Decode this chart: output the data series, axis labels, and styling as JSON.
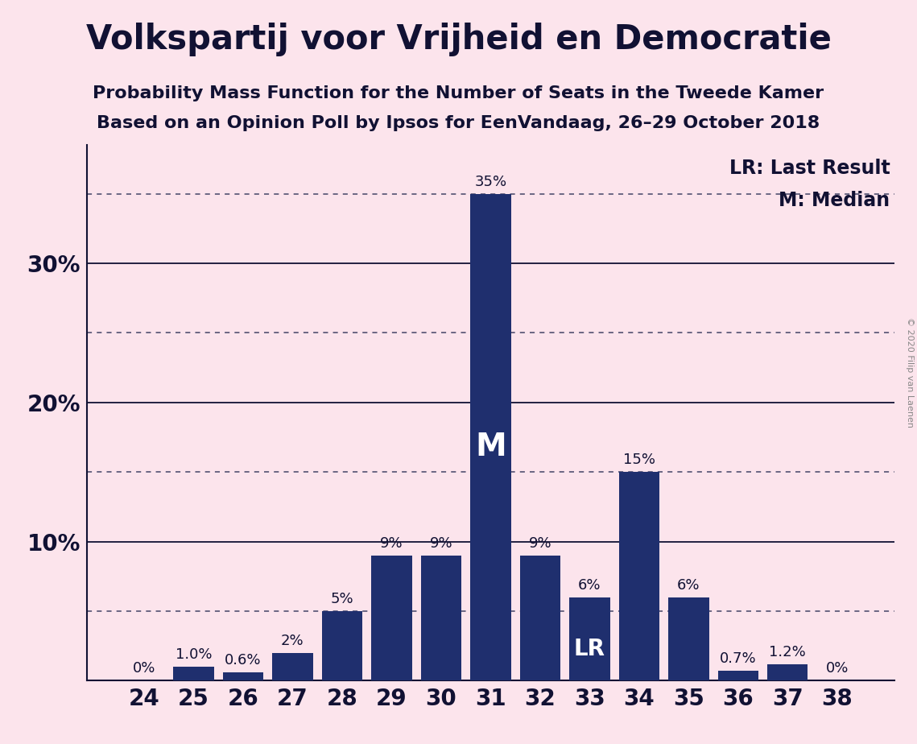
{
  "title": "Volkspartij voor Vrijheid en Democratie",
  "subtitle1": "Probability Mass Function for the Number of Seats in the Tweede Kamer",
  "subtitle2": "Based on an Opinion Poll by Ipsos for EenVandaag, 26–29 October 2018",
  "copyright": "© 2020 Filip van Laenen",
  "legend_lr": "LR: Last Result",
  "legend_m": "M: Median",
  "seats": [
    24,
    25,
    26,
    27,
    28,
    29,
    30,
    31,
    32,
    33,
    34,
    35,
    36,
    37,
    38
  ],
  "values": [
    0.0,
    1.0,
    0.6,
    2.0,
    5.0,
    9.0,
    9.0,
    35.0,
    9.0,
    6.0,
    15.0,
    6.0,
    0.7,
    1.2,
    0.0
  ],
  "labels": [
    "0%",
    "1.0%",
    "0.6%",
    "2%",
    "5%",
    "9%",
    "9%",
    "35%",
    "9%",
    "6%",
    "15%",
    "6%",
    "0.7%",
    "1.2%",
    "0%"
  ],
  "bar_color": "#1f2f6e",
  "background_color": "#fce4ec",
  "median_seat": 31,
  "lr_seat": 33,
  "ytick_values": [
    10,
    20,
    30
  ],
  "ytick_labels": [
    "10%",
    "20%",
    "30%"
  ],
  "solid_line_values": [
    10,
    20,
    30
  ],
  "dotted_line_values": [
    5,
    15,
    25,
    35
  ],
  "ylim_max": 38.5,
  "title_fontsize": 30,
  "subtitle_fontsize": 16,
  "label_fontsize": 13,
  "axis_fontsize": 20,
  "legend_fontsize": 17,
  "spine_color": "#111133"
}
